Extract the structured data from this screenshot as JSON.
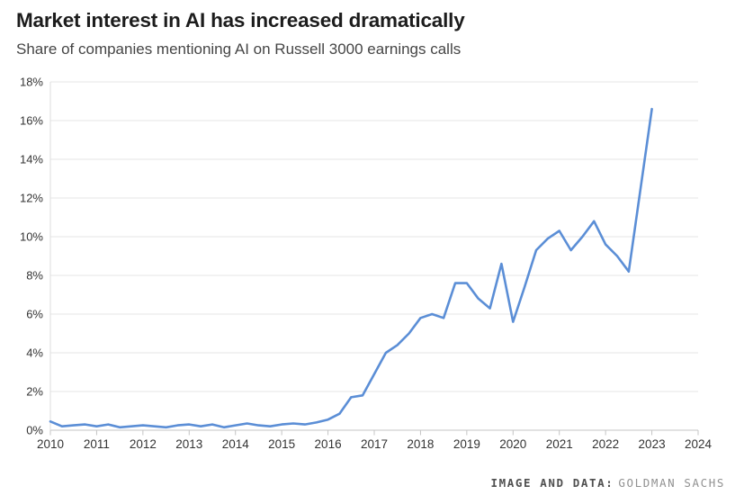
{
  "header": {
    "title": "Market interest in AI has increased dramatically",
    "subtitle": "Share of companies mentioning AI on Russell 3000 earnings calls"
  },
  "attribution": {
    "label": "IMAGE AND DATA:",
    "source": "GOLDMAN SACHS"
  },
  "chart_data": {
    "type": "line",
    "title": "Market interest in AI has increased dramatically",
    "subtitle": "Share of companies mentioning AI on Russell 3000 earnings calls",
    "xlabel": "",
    "ylabel": "",
    "xlim": [
      2010,
      2024
    ],
    "ylim": [
      0,
      18
    ],
    "grid": "horizontal",
    "legend": "none",
    "line_color": "#5b8ed6",
    "grid_color": "#e4e4e4",
    "axis_color": "#c4c4c4",
    "left_axis_color": "#dedede",
    "tick_label_color": "#333333",
    "x_ticks": {
      "values": [
        2010,
        2011,
        2012,
        2013,
        2014,
        2015,
        2016,
        2017,
        2018,
        2019,
        2020,
        2021,
        2022,
        2023,
        2024
      ],
      "labels": [
        "2010",
        "2011",
        "2012",
        "2013",
        "2014",
        "2015",
        "2016",
        "2017",
        "2018",
        "2019",
        "2020",
        "2021",
        "2022",
        "2023",
        "2024"
      ]
    },
    "y_ticks": {
      "values": [
        0,
        2,
        4,
        6,
        8,
        10,
        12,
        14,
        16,
        18
      ],
      "labels": [
        "0%",
        "2%",
        "4%",
        "6%",
        "8%",
        "10%",
        "12%",
        "14%",
        "16%",
        "18%"
      ]
    },
    "series": [
      {
        "name": "Share of companies mentioning AI on earnings calls (%)",
        "x": [
          2010.0,
          2010.25,
          2010.5,
          2010.75,
          2011.0,
          2011.25,
          2011.5,
          2011.75,
          2012.0,
          2012.25,
          2012.5,
          2012.75,
          2013.0,
          2013.25,
          2013.5,
          2013.75,
          2014.0,
          2014.25,
          2014.5,
          2014.75,
          2015.0,
          2015.25,
          2015.5,
          2015.75,
          2016.0,
          2016.25,
          2016.5,
          2016.75,
          2017.0,
          2017.25,
          2017.5,
          2017.75,
          2018.0,
          2018.25,
          2018.5,
          2018.75,
          2019.0,
          2019.25,
          2019.5,
          2019.75,
          2020.0,
          2020.25,
          2020.5,
          2020.75,
          2021.0,
          2021.25,
          2021.5,
          2021.75,
          2022.0,
          2022.25,
          2022.5,
          2023.0
        ],
        "values": [
          0.45,
          0.2,
          0.25,
          0.3,
          0.2,
          0.3,
          0.15,
          0.2,
          0.25,
          0.2,
          0.15,
          0.25,
          0.3,
          0.2,
          0.3,
          0.15,
          0.25,
          0.35,
          0.25,
          0.2,
          0.3,
          0.35,
          0.3,
          0.4,
          0.55,
          0.85,
          1.7,
          1.8,
          2.9,
          4.0,
          4.4,
          5.0,
          5.8,
          6.0,
          5.8,
          7.6,
          7.6,
          6.8,
          6.3,
          8.6,
          5.6,
          7.4,
          9.3,
          9.9,
          10.3,
          9.3,
          10.0,
          10.8,
          9.6,
          9.0,
          8.2,
          16.6
        ]
      }
    ]
  }
}
